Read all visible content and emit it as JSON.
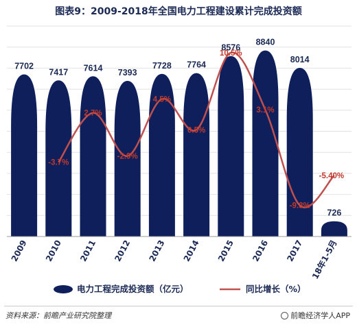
{
  "title": "图表9：2009-2018年全国电力工程建设累计完成投资额",
  "footer": {
    "source": "资料来源：前瞻产业研究院整理",
    "brand": "前瞻经济学人APP"
  },
  "colors": {
    "bar": "#0f1f5c",
    "line": "#c0504d",
    "bar_label": "#1b2a55",
    "line_label": "#c0392b"
  },
  "chart_data": {
    "type": "bar",
    "categories": [
      "2009",
      "2010",
      "2011",
      "2012",
      "2013",
      "2014",
      "2015",
      "2016",
      "2017",
      "18年1-5月"
    ],
    "series": [
      {
        "name": "电力工程完成投资额（亿元）",
        "type": "bar",
        "values": [
          7702,
          7417,
          7614,
          7393,
          7728,
          7764,
          8576,
          8840,
          8014,
          726
        ],
        "labels": [
          "7702",
          "7417",
          "7614",
          "7393",
          "7728",
          "7764",
          "8576",
          "8840",
          "8014",
          "726"
        ]
      },
      {
        "name": "同比增长（%）",
        "type": "line",
        "values": [
          null,
          -3.7,
          2.7,
          -2.9,
          4.5,
          0.5,
          10.5,
          3.1,
          -9.3,
          -5.4
        ],
        "labels": [
          "",
          "-3.7%",
          "2.7%",
          "-2.9%",
          "4.5%",
          "0.5%",
          "10.5%",
          "3.1%",
          "-9.3%",
          "-5.40%"
        ]
      }
    ],
    "ylim_bar": [
      0,
      10000
    ],
    "ylim_line": [
      -12,
      12
    ],
    "grid": true,
    "legend": "bottom"
  }
}
